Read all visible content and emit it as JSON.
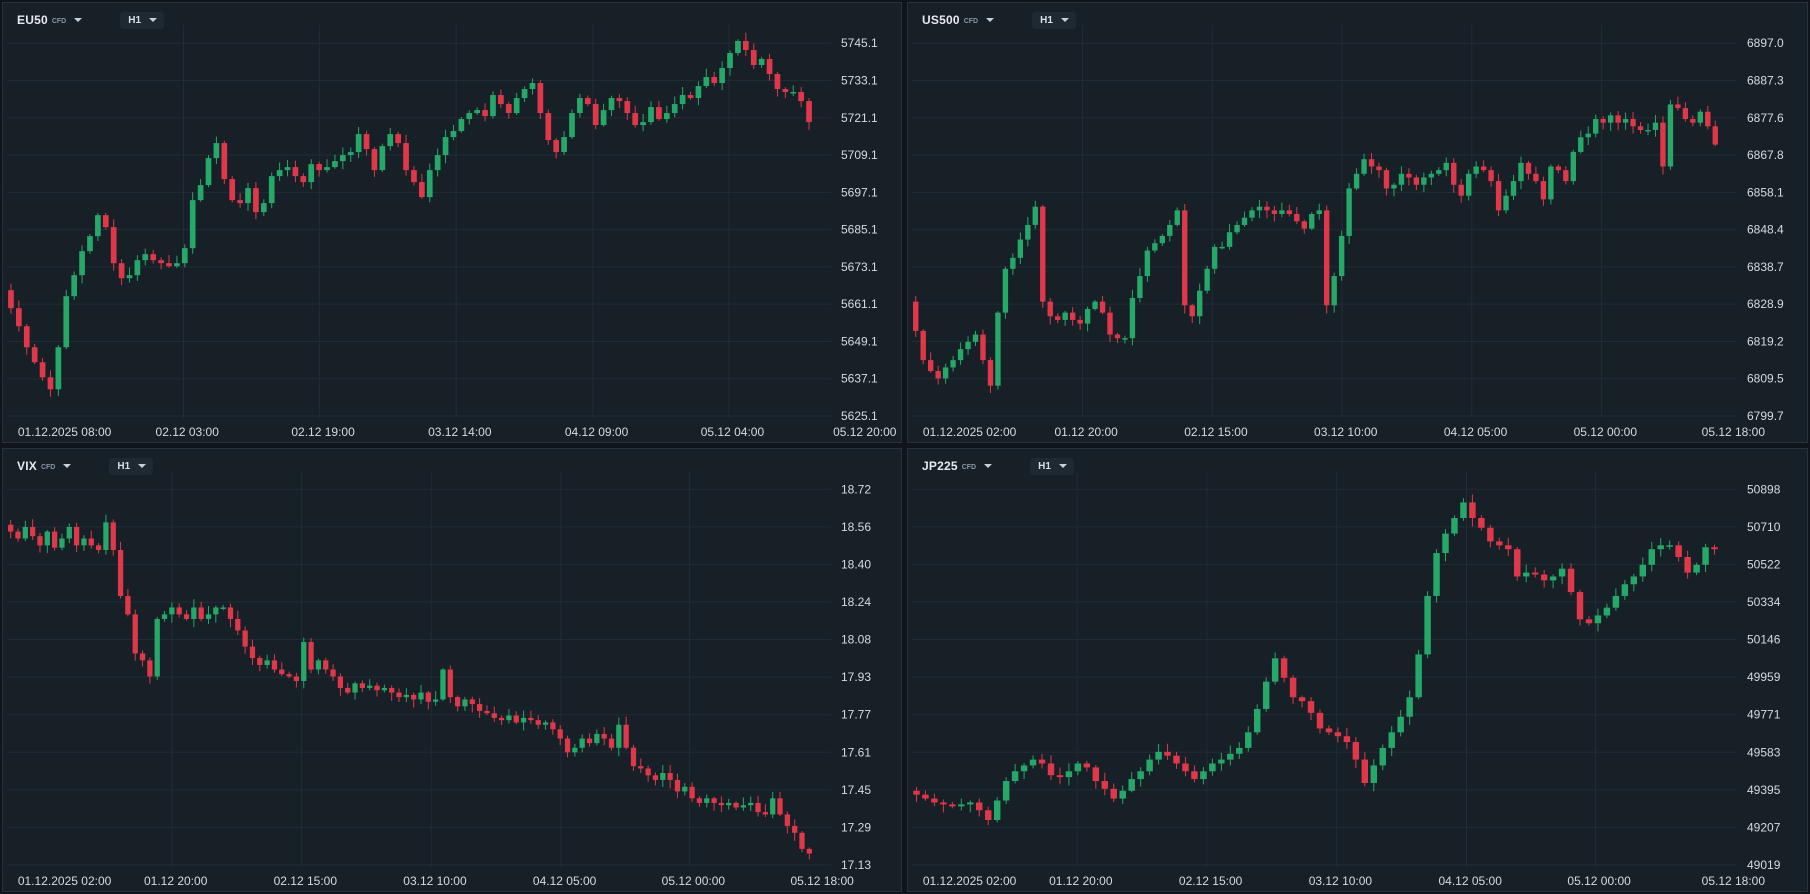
{
  "colors": {
    "up": "#26a86a",
    "down": "#e0384b",
    "grid": "#222c35",
    "text": "#d5dbe0",
    "bg": "#171f27"
  },
  "chart_data": [
    {
      "type": "candlestick",
      "symbol": "EU50",
      "symbol_type": "CFD",
      "timeframe": "H1",
      "ylim": [
        5625.1,
        5752.0
      ],
      "y_ticks": [
        "5745.1",
        "5733.1",
        "5721.1",
        "5709.1",
        "5697.1",
        "5685.1",
        "5673.1",
        "5661.1",
        "5649.1",
        "5637.1",
        "5625.1"
      ],
      "x_ticks": [
        "01.12.2025   08:00",
        "02.12  03:00",
        "02.12  19:00",
        "03.12  14:00",
        "04.12  09:00",
        "05.12  04:00",
        "05.12  20:00"
      ],
      "x_tick_frac": [
        0.01,
        0.165,
        0.318,
        0.472,
        0.626,
        0.779,
        0.928
      ],
      "closes": [
        5661,
        5655,
        5648,
        5643,
        5638,
        5634,
        5648,
        5665,
        5672,
        5680,
        5685,
        5692,
        5688,
        5676,
        5671,
        5672,
        5677,
        5679,
        5677,
        5676,
        5675,
        5676,
        5681,
        5697,
        5702,
        5711,
        5716,
        5704,
        5697,
        5696,
        5701,
        5693,
        5696,
        5705,
        5707,
        5708,
        5705,
        5703,
        5709,
        5707,
        5708,
        5710,
        5712,
        5713,
        5719,
        5714,
        5707,
        5715,
        5719,
        5716,
        5707,
        5703,
        5698,
        5707,
        5712,
        5718,
        5720,
        5724,
        5726,
        5727,
        5725,
        5732,
        5729,
        5726,
        5731,
        5734,
        5736,
        5726,
        5717,
        5713,
        5718,
        5726,
        5731,
        5729,
        5722,
        5727,
        5731,
        5730,
        5726,
        5722,
        5723,
        5728,
        5724,
        5726,
        5729,
        5732,
        5731,
        5735,
        5738,
        5736,
        5741,
        5746,
        5750,
        5747,
        5742,
        5744,
        5739,
        5734,
        5733,
        5733,
        5730,
        5723
      ]
    },
    {
      "type": "candlestick",
      "symbol": "US500",
      "symbol_type": "CFD",
      "timeframe": "H1",
      "ylim": [
        6799.7,
        6904.0
      ],
      "y_ticks": [
        "6897.0",
        "6887.3",
        "6877.6",
        "6867.8",
        "6858.1",
        "6848.4",
        "6838.7",
        "6828.9",
        "6819.2",
        "6809.5",
        "6799.7"
      ],
      "x_ticks": [
        "01.12.2025   02:00",
        "01.12  20:00",
        "02.12  15:00",
        "03.12  10:00",
        "04.12  05:00",
        "05.12  00:00",
        "05.12  18:00"
      ],
      "x_tick_frac": [
        0.01,
        0.158,
        0.304,
        0.45,
        0.596,
        0.742,
        0.886
      ],
      "closes": [
        6823,
        6815,
        6812,
        6810,
        6813,
        6815,
        6818,
        6820,
        6822,
        6815,
        6808,
        6828,
        6840,
        6843,
        6848,
        6852,
        6857,
        6831,
        6827,
        6826,
        6828,
        6826,
        6825,
        6829,
        6831,
        6828,
        6822,
        6821,
        6821,
        6832,
        6838,
        6845,
        6847,
        6849,
        6852,
        6856,
        6830,
        6827,
        6834,
        6840,
        6846,
        6846,
        6850,
        6852,
        6854,
        6856,
        6857,
        6856,
        6855,
        6856,
        6855,
        6853,
        6851,
        6855,
        6856,
        6830,
        6838,
        6849,
        6862,
        6866,
        6870,
        6868,
        6867,
        6862,
        6863,
        6866,
        6865,
        6863,
        6865,
        6866,
        6867,
        6869,
        6863,
        6860,
        6866,
        6868,
        6867,
        6864,
        6856,
        6860,
        6864,
        6869,
        6866,
        6864,
        6859,
        6868,
        6867,
        6864,
        6872,
        6876,
        6877,
        6881,
        6880,
        6882,
        6880,
        6881,
        6879,
        6878,
        6878,
        6880,
        6868,
        6885,
        6884,
        6881,
        6880,
        6883,
        6879,
        6874
      ]
    },
    {
      "type": "candlestick",
      "symbol": "VIX",
      "symbol_type": "CFD",
      "timeframe": "H1",
      "ylim": [
        17.13,
        18.8
      ],
      "y_ticks": [
        "18.72",
        "18.56",
        "18.40",
        "18.24",
        "18.08",
        "17.93",
        "17.77",
        "17.61",
        "17.45",
        "17.29",
        "17.13"
      ],
      "x_ticks": [
        "01.12.2025   02:00",
        "01.12  20:00",
        "02.12  15:00",
        "03.12  10:00",
        "04.12  05:00",
        "05.12  00:00",
        "05.12  18:00"
      ],
      "x_tick_frac": [
        0.01,
        0.152,
        0.298,
        0.444,
        0.59,
        0.735,
        0.88
      ],
      "closes": [
        18.58,
        18.55,
        18.6,
        18.56,
        18.52,
        18.58,
        18.51,
        18.55,
        18.6,
        18.52,
        18.55,
        18.52,
        18.5,
        18.62,
        18.5,
        18.3,
        18.22,
        18.05,
        18.02,
        17.95,
        18.2,
        18.22,
        18.25,
        18.22,
        18.2,
        18.25,
        18.2,
        18.22,
        18.25,
        18.25,
        18.2,
        18.15,
        18.08,
        18.03,
        18.0,
        18.02,
        17.98,
        17.96,
        17.95,
        17.93,
        18.1,
        17.98,
        18.02,
        17.98,
        17.95,
        17.9,
        17.88,
        17.92,
        17.9,
        17.91,
        17.89,
        17.9,
        17.88,
        17.86,
        17.87,
        17.85,
        17.88,
        17.84,
        17.85,
        17.98,
        17.86,
        17.82,
        17.85,
        17.83,
        17.8,
        17.79,
        17.77,
        17.76,
        17.78,
        17.75,
        17.77,
        17.76,
        17.74,
        17.75,
        17.72,
        17.68,
        17.62,
        17.64,
        17.68,
        17.66,
        17.7,
        17.68,
        17.64,
        17.74,
        17.64,
        17.56,
        17.55,
        17.52,
        17.5,
        17.53,
        17.5,
        17.45,
        17.47,
        17.42,
        17.4,
        17.42,
        17.4,
        17.39,
        17.4,
        17.38,
        17.39,
        17.4,
        17.36,
        17.35,
        17.42,
        17.35,
        17.3,
        17.27,
        17.2,
        17.18
      ]
    },
    {
      "type": "candlestick",
      "symbol": "JP225",
      "symbol_type": "CFD",
      "timeframe": "H1",
      "ylim": [
        49019,
        50990
      ],
      "y_ticks": [
        "50898",
        "50710",
        "50522",
        "50334",
        "50146",
        "49959",
        "49771",
        "49583",
        "49395",
        "49207",
        "49019"
      ],
      "x_ticks": [
        "01.12.2025   02:00",
        "01.12  20:00",
        "02.12  15:00",
        "03.12  10:00",
        "04.12  05:00",
        "05.12  00:00",
        "05.12  18:00"
      ],
      "x_tick_frac": [
        0.01,
        0.152,
        0.298,
        0.444,
        0.59,
        0.735,
        0.886
      ],
      "closes": [
        49380,
        49360,
        49340,
        49330,
        49320,
        49330,
        49340,
        49300,
        49250,
        49350,
        49450,
        49500,
        49530,
        49560,
        49540,
        49480,
        49470,
        49500,
        49540,
        49520,
        49450,
        49410,
        49360,
        49400,
        49460,
        49500,
        49560,
        49600,
        49580,
        49540,
        49500,
        49460,
        49500,
        49540,
        49560,
        49590,
        49620,
        49700,
        49820,
        49960,
        50080,
        49980,
        49880,
        49860,
        49800,
        49720,
        49700,
        49680,
        49650,
        49560,
        49440,
        49530,
        49620,
        49700,
        49780,
        49880,
        50100,
        50400,
        50620,
        50720,
        50800,
        50880,
        50800,
        50750,
        50680,
        50660,
        50640,
        50500,
        50520,
        50510,
        50480,
        50500,
        50540,
        50420,
        50280,
        50260,
        50300,
        50340,
        50400,
        50460,
        50500,
        50560,
        50640,
        50660,
        50660,
        50600,
        50520,
        50560,
        50650,
        50640
      ]
    }
  ]
}
